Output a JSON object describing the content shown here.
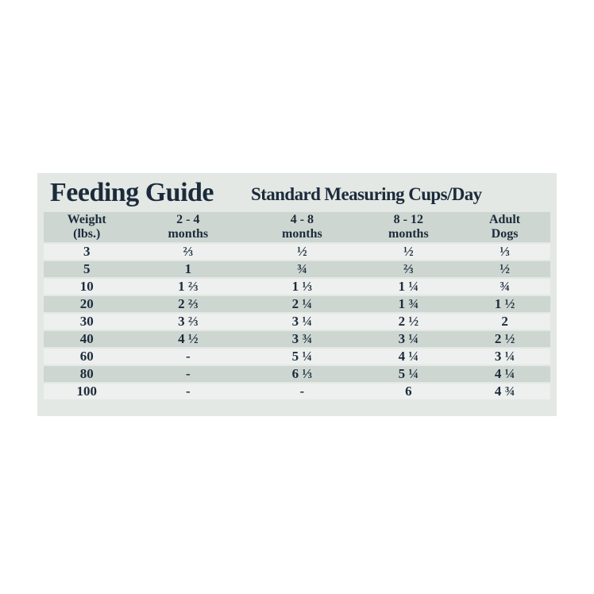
{
  "panel": {
    "title": "Feeding Guide",
    "subtitle": "Standard Measuring Cups/Day",
    "colors": {
      "page_background": "#ffffff",
      "panel_background": "#e3e8e4",
      "stripe_dark": "#cdd6d1",
      "stripe_light": "#edf0ee",
      "text": "#1c2b3b"
    }
  },
  "table": {
    "columns": [
      {
        "line1": "Weight",
        "line2": "(lbs.)"
      },
      {
        "line1": "2 - 4",
        "line2": "months"
      },
      {
        "line1": "4 - 8",
        "line2": "months"
      },
      {
        "line1": "8 - 12",
        "line2": "months"
      },
      {
        "line1": "Adult",
        "line2": "Dogs"
      }
    ],
    "rows": [
      [
        "3",
        "⅔",
        "½",
        "½",
        "⅓"
      ],
      [
        "5",
        "1",
        "¾",
        "⅔",
        "½"
      ],
      [
        "10",
        "1 ⅔",
        "1 ⅓",
        "1 ¼",
        "¾"
      ],
      [
        "20",
        "2 ⅔",
        "2 ¼",
        "1 ¾",
        "1 ½"
      ],
      [
        "30",
        "3 ⅔",
        "3 ¼",
        "2 ½",
        "2"
      ],
      [
        "40",
        "4 ½",
        "3 ¾",
        "3 ¼",
        "2 ½"
      ],
      [
        "60",
        "-",
        "5 ¼",
        "4 ¼",
        "3 ¼"
      ],
      [
        "80",
        "-",
        "6 ⅓",
        "5 ¼",
        "4 ¼"
      ],
      [
        "100",
        "-",
        "-",
        "6",
        "4 ¾"
      ]
    ]
  }
}
